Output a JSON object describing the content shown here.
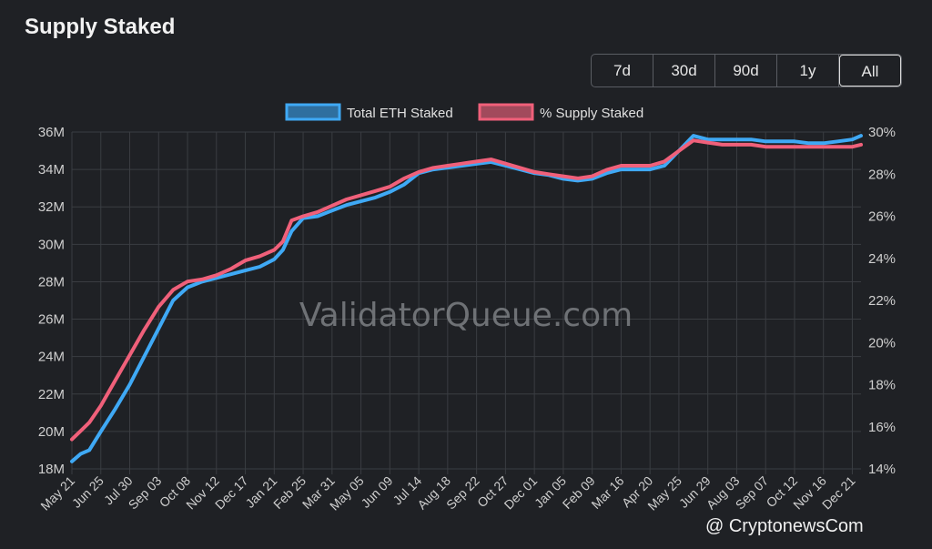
{
  "page": {
    "title": "Supply Staked",
    "ranges": [
      "7d",
      "30d",
      "90d",
      "1y",
      "All"
    ],
    "active_range": "All",
    "watermark_text": "ValidatorQueue.com",
    "credit_text": "@ CryptonewsCom"
  },
  "colors": {
    "background": "#1f2125",
    "grid": "#3a3d42",
    "eth_line": "#3fa9f5",
    "eth_fill": "#2f6f9f",
    "pct_line": "#f0607a",
    "pct_fill": "#a24a5c"
  },
  "chart_data": {
    "type": "line",
    "title": "Supply Staked",
    "legend_position": "top-center",
    "grid": true,
    "categories": [
      "May 21",
      "Jun 25",
      "Jul 30",
      "Sep 03",
      "Oct 08",
      "Nov 12",
      "Dec 17",
      "Jan 21",
      "Feb 25",
      "Mar 31",
      "May 05",
      "Jun 09",
      "Jul 14",
      "Aug 18",
      "Sep 22",
      "Oct 27",
      "Dec 01",
      "Jan 05",
      "Feb 09",
      "Mar 16",
      "Apr 20",
      "May 25",
      "Jun 29",
      "Aug 03",
      "Sep 07",
      "Oct 12",
      "Nov 16",
      "Dec 21"
    ],
    "y_left": {
      "ticks": [
        "18M",
        "20M",
        "22M",
        "24M",
        "26M",
        "28M",
        "30M",
        "32M",
        "34M",
        "36M"
      ],
      "range": [
        18,
        36
      ],
      "unit": "M"
    },
    "y_right": {
      "ticks": [
        "14%",
        "16%",
        "18%",
        "20%",
        "22%",
        "24%",
        "26%",
        "28%",
        "30%"
      ],
      "range": [
        14,
        30
      ],
      "unit": "%"
    },
    "series": [
      {
        "name": "Total ETH Staked",
        "axis": "left",
        "x": [
          0,
          0.3,
          0.6,
          1,
          1.5,
          2,
          2.5,
          3,
          3.5,
          4,
          4.5,
          5,
          5.5,
          6,
          6.5,
          7,
          7.3,
          7.6,
          8,
          8.5,
          9,
          9.5,
          10,
          10.5,
          11,
          11.5,
          12,
          12.5,
          13,
          13.5,
          14,
          14.5,
          15,
          15.5,
          16,
          16.5,
          17,
          17.5,
          18,
          18.5,
          19,
          19.5,
          20,
          20.5,
          21,
          21.5,
          22,
          22.5,
          23,
          23.5,
          24,
          24.5,
          25,
          25.5,
          26,
          26.5,
          27,
          27.3
        ],
        "values": [
          18.4,
          18.8,
          19.0,
          20.0,
          21.2,
          22.5,
          24.0,
          25.5,
          27.0,
          27.7,
          28.0,
          28.2,
          28.4,
          28.6,
          28.8,
          29.2,
          29.7,
          30.7,
          31.4,
          31.5,
          31.8,
          32.1,
          32.3,
          32.5,
          32.8,
          33.2,
          33.8,
          34.0,
          34.1,
          34.2,
          34.3,
          34.4,
          34.2,
          34.0,
          33.8,
          33.7,
          33.5,
          33.4,
          33.5,
          33.8,
          34.0,
          34.0,
          34.0,
          34.2,
          35.0,
          35.8,
          35.6,
          35.6,
          35.6,
          35.6,
          35.5,
          35.5,
          35.5,
          35.4,
          35.4,
          35.5,
          35.6,
          35.8
        ]
      },
      {
        "name": "% Supply Staked",
        "axis": "right",
        "x": [
          0,
          0.3,
          0.6,
          1,
          1.5,
          2,
          2.5,
          3,
          3.5,
          4,
          4.5,
          5,
          5.5,
          6,
          6.5,
          7,
          7.3,
          7.6,
          8,
          8.5,
          9,
          9.5,
          10,
          10.5,
          11,
          11.5,
          12,
          12.5,
          13,
          13.5,
          14,
          14.5,
          15,
          15.5,
          16,
          16.5,
          17,
          17.5,
          18,
          18.5,
          19,
          19.5,
          20,
          20.5,
          21,
          21.5,
          22,
          22.5,
          23,
          23.5,
          24,
          24.5,
          25,
          25.5,
          26,
          26.5,
          27,
          27.3
        ],
        "values": [
          15.4,
          15.8,
          16.2,
          17.0,
          18.2,
          19.4,
          20.6,
          21.7,
          22.5,
          22.9,
          23.0,
          23.2,
          23.5,
          23.9,
          24.1,
          24.4,
          24.8,
          25.8,
          26.0,
          26.2,
          26.5,
          26.8,
          27.0,
          27.2,
          27.4,
          27.8,
          28.1,
          28.3,
          28.4,
          28.5,
          28.6,
          28.7,
          28.5,
          28.3,
          28.1,
          28.0,
          27.9,
          27.8,
          27.9,
          28.2,
          28.4,
          28.4,
          28.4,
          28.6,
          29.1,
          29.6,
          29.5,
          29.4,
          29.4,
          29.4,
          29.3,
          29.3,
          29.3,
          29.3,
          29.3,
          29.3,
          29.3,
          29.4
        ]
      }
    ]
  }
}
